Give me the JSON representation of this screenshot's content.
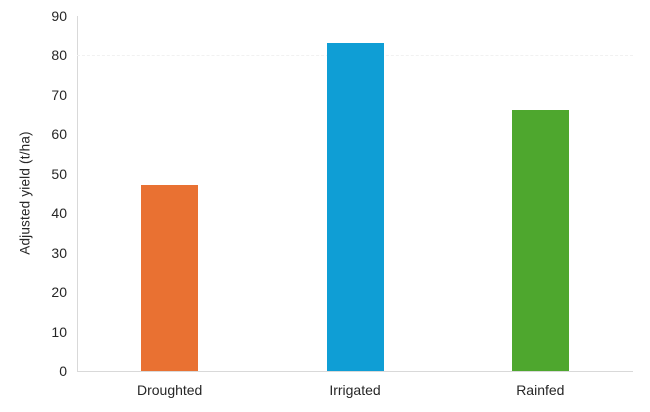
{
  "chart_data": {
    "type": "bar",
    "title": "",
    "categories": [
      "Droughted",
      "Irrigated",
      "Rainfed"
    ],
    "values": [
      47,
      83,
      66
    ],
    "colors": [
      "#E97132",
      "#0F9ED5",
      "#4EA72E"
    ],
    "xlabel": "",
    "ylabel": "Adjusted yield (t/ha)",
    "ylim": [
      0,
      90
    ],
    "yticks": [
      0,
      10,
      20,
      30,
      40,
      50,
      60,
      70,
      80,
      90
    ],
    "grid": "off",
    "faint_dashed_gridline_value": 80,
    "legend": "none",
    "axis_color": "#D9D9D9",
    "text_color": "#262626"
  }
}
